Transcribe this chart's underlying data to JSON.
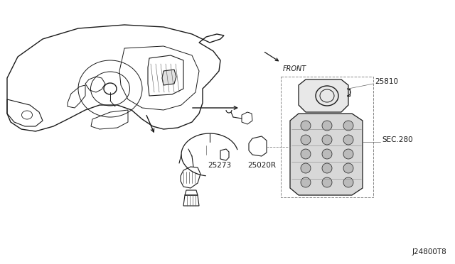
{
  "bg_color": "#ffffff",
  "line_color": "#1a1a1a",
  "text_color": "#1a1a1a",
  "gray_text": "#666666",
  "diagram_id": "J24800T8",
  "front_label": "FRONT",
  "label_25273": "25273",
  "label_25020R": "25020R",
  "label_25810": "25810",
  "label_sec280": "SEC.280",
  "figsize": [
    6.4,
    3.72
  ],
  "dpi": 100
}
